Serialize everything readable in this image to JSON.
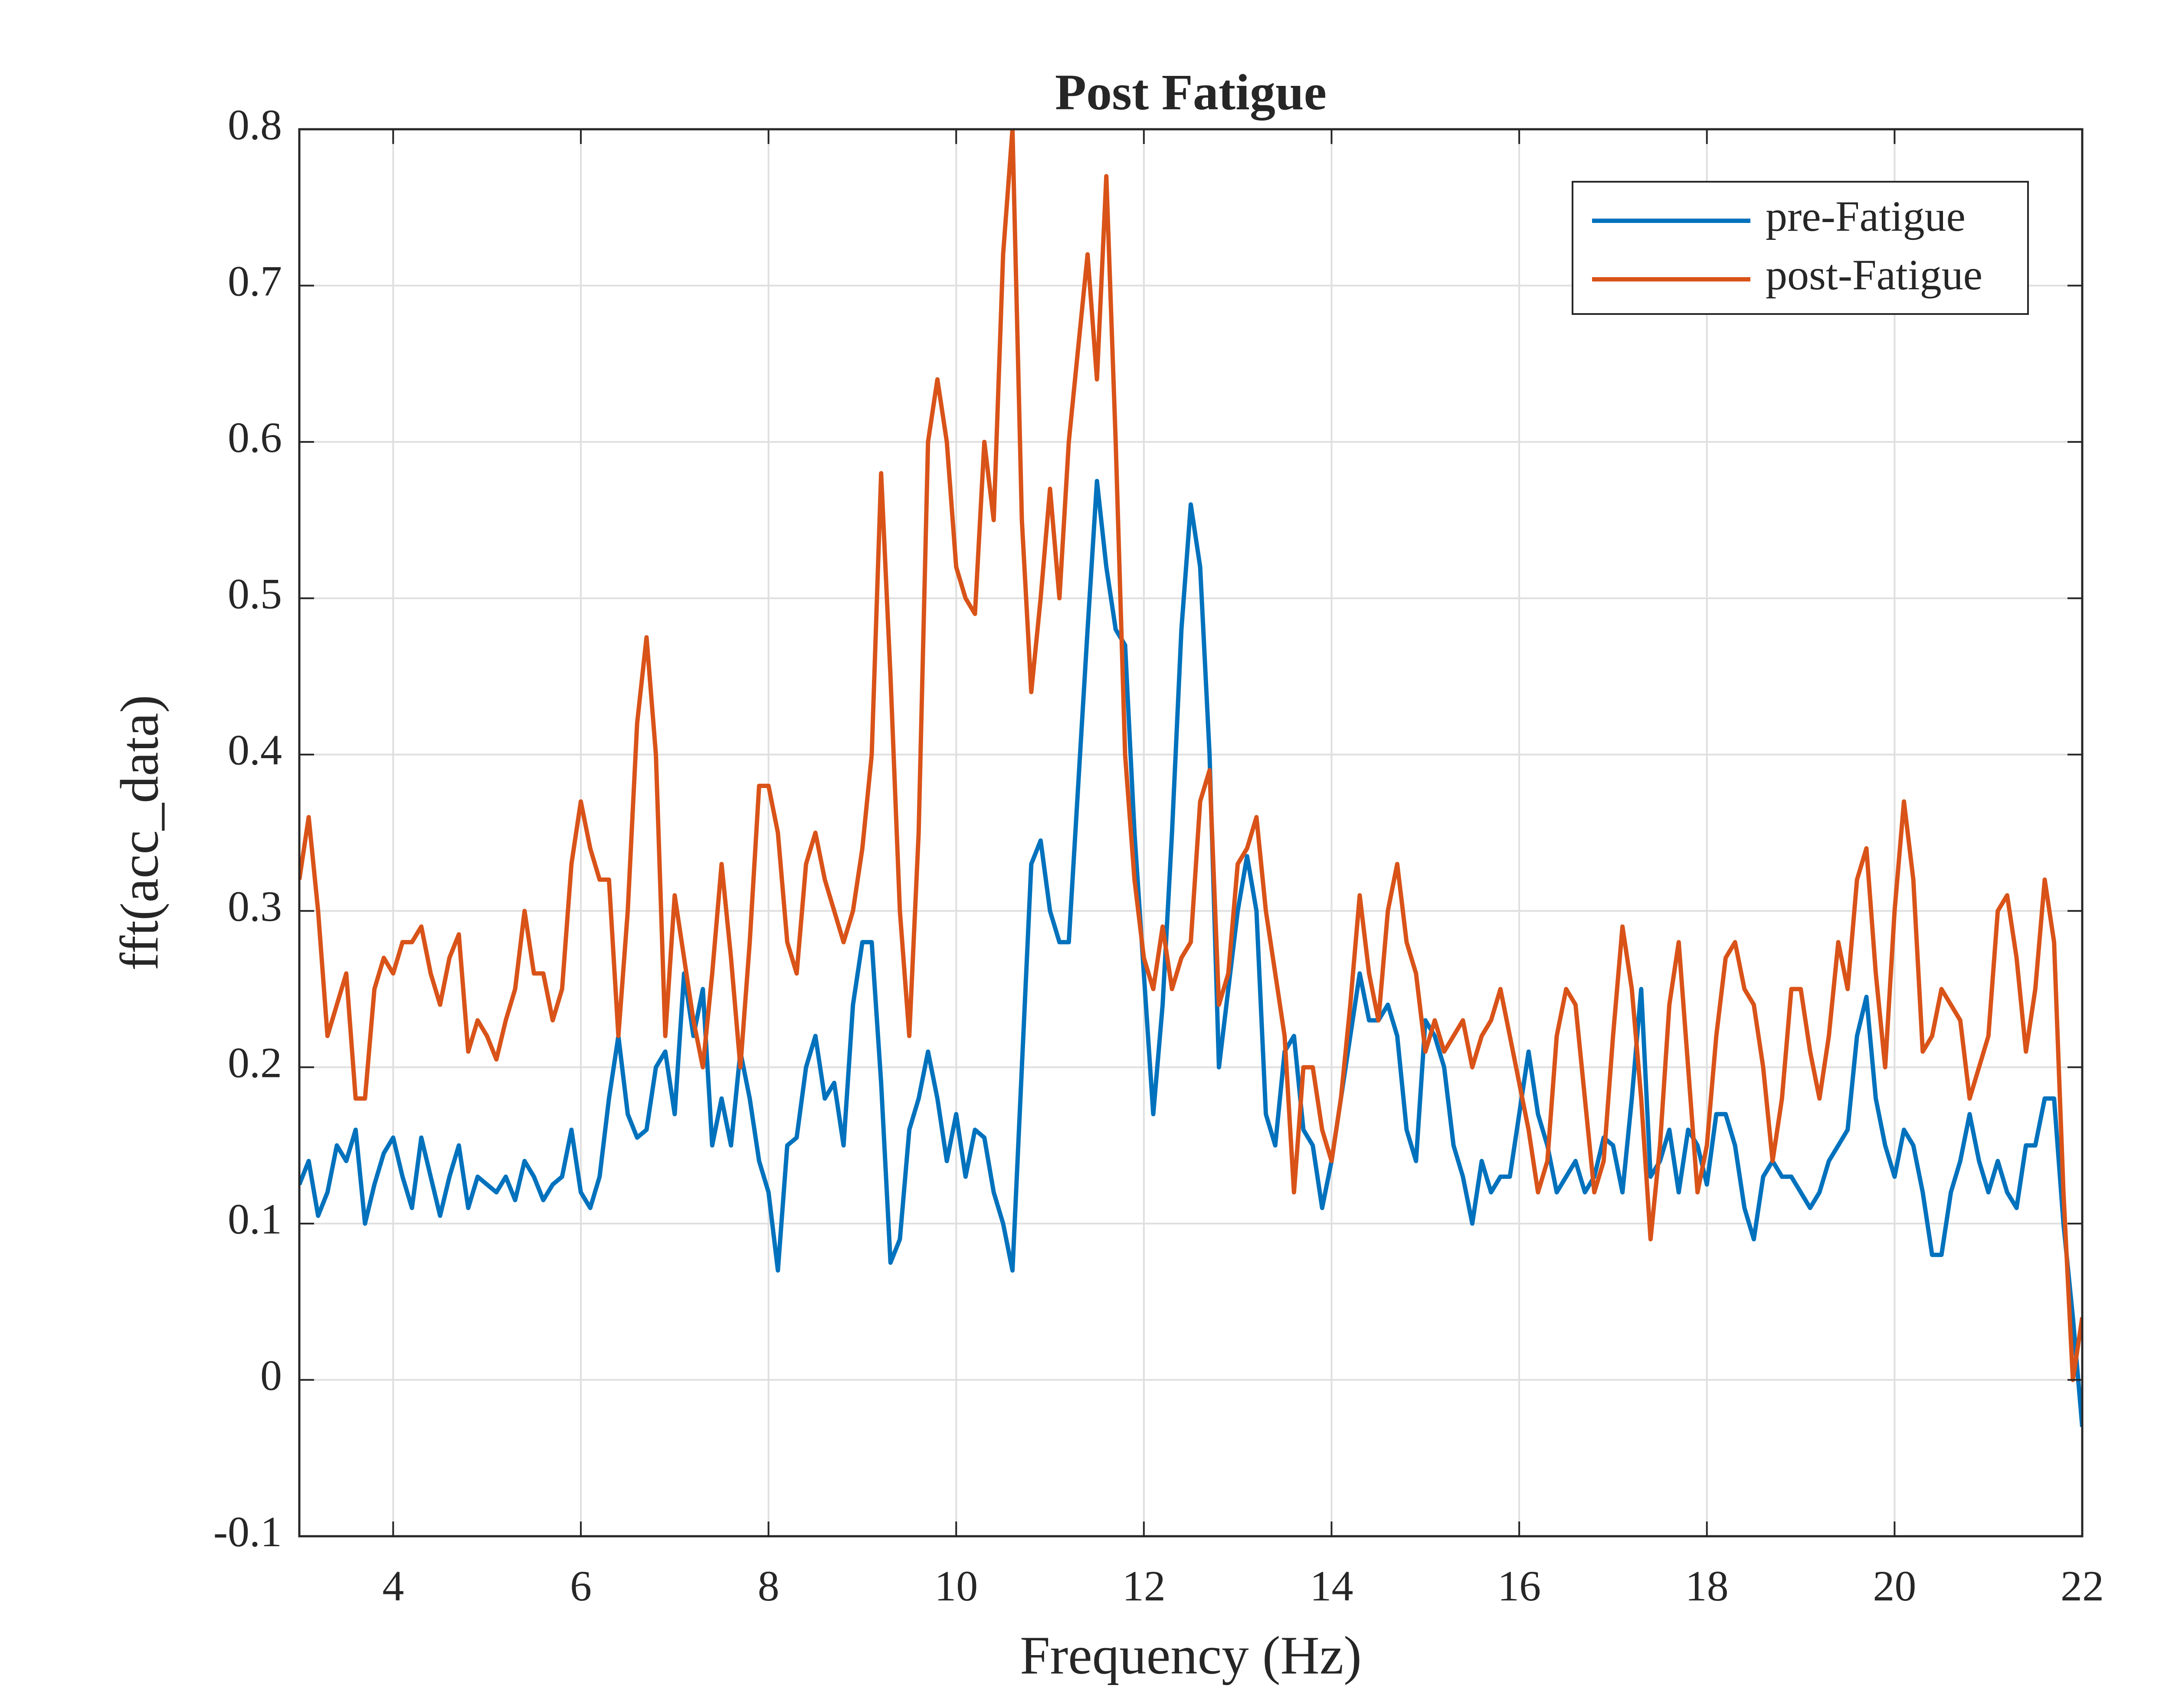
{
  "chart_data": {
    "type": "line",
    "title": "Post Fatigue",
    "xlabel": "Frequency (Hz)",
    "ylabel": "fft(acc_data)",
    "x": [
      3,
      3.1,
      3.2,
      3.3,
      3.4,
      3.5,
      3.6,
      3.7,
      3.8,
      3.9,
      4,
      4.1,
      4.2,
      4.3,
      4.4,
      4.5,
      4.6,
      4.7,
      4.8,
      4.9,
      5,
      5.1,
      5.2,
      5.3,
      5.4,
      5.5,
      5.6,
      5.7,
      5.8,
      5.9,
      6,
      6.1,
      6.2,
      6.3,
      6.4,
      6.5,
      6.6,
      6.7,
      6.8,
      6.9,
      7,
      7.1,
      7.2,
      7.3,
      7.4,
      7.5,
      7.6,
      7.7,
      7.8,
      7.9,
      8,
      8.1,
      8.2,
      8.3,
      8.4,
      8.5,
      8.6,
      8.7,
      8.8,
      8.9,
      9,
      9.1,
      9.2,
      9.3,
      9.4,
      9.5,
      9.6,
      9.7,
      9.8,
      9.9,
      10,
      10.1,
      10.2,
      10.3,
      10.4,
      10.5,
      10.6,
      10.7,
      10.8,
      10.9,
      11,
      11.1,
      11.2,
      11.3,
      11.4,
      11.5,
      11.6,
      11.7,
      11.8,
      11.9,
      12,
      12.1,
      12.2,
      12.3,
      12.4,
      12.5,
      12.6,
      12.7,
      12.8,
      12.9,
      13,
      13.1,
      13.2,
      13.3,
      13.4,
      13.5,
      13.6,
      13.7,
      13.8,
      13.9,
      14,
      14.1,
      14.2,
      14.3,
      14.4,
      14.5,
      14.6,
      14.7,
      14.8,
      14.9,
      15,
      15.1,
      15.2,
      15.3,
      15.4,
      15.5,
      15.6,
      15.7,
      15.8,
      15.9,
      16,
      16.1,
      16.2,
      16.3,
      16.4,
      16.5,
      16.6,
      16.7,
      16.8,
      16.9,
      17,
      17.1,
      17.2,
      17.3,
      17.4,
      17.5,
      17.6,
      17.7,
      17.8,
      17.9,
      18,
      18.1,
      18.2,
      18.3,
      18.4,
      18.5,
      18.6,
      18.7,
      18.8,
      18.9,
      19,
      19.1,
      19.2,
      19.3,
      19.4,
      19.5,
      19.6,
      19.7,
      19.8,
      19.9,
      20,
      20.1,
      20.2,
      20.3,
      20.4,
      20.5,
      20.6,
      20.7,
      20.8,
      20.9,
      21,
      21.1,
      21.2,
      21.3,
      21.4,
      21.5,
      21.6,
      21.7,
      21.8,
      21.9,
      22
    ],
    "series": [
      {
        "name": "pre-Fatigue",
        "color": "#0072bd",
        "values": [
          0.125,
          0.14,
          0.105,
          0.12,
          0.15,
          0.14,
          0.16,
          0.1,
          0.125,
          0.145,
          0.155,
          0.13,
          0.11,
          0.155,
          0.13,
          0.105,
          0.13,
          0.15,
          0.11,
          0.13,
          0.125,
          0.12,
          0.13,
          0.115,
          0.14,
          0.13,
          0.115,
          0.125,
          0.13,
          0.16,
          0.12,
          0.11,
          0.13,
          0.18,
          0.22,
          0.17,
          0.155,
          0.16,
          0.2,
          0.21,
          0.17,
          0.26,
          0.22,
          0.25,
          0.15,
          0.18,
          0.15,
          0.21,
          0.18,
          0.14,
          0.12,
          0.07,
          0.15,
          0.155,
          0.2,
          0.22,
          0.18,
          0.19,
          0.15,
          0.24,
          0.28,
          0.28,
          0.19,
          0.075,
          0.09,
          0.16,
          0.18,
          0.21,
          0.18,
          0.14,
          0.17,
          0.13,
          0.16,
          0.155,
          0.12,
          0.1,
          0.07,
          0.2,
          0.33,
          0.345,
          0.3,
          0.28,
          0.28,
          0.38,
          0.48,
          0.575,
          0.52,
          0.48,
          0.47,
          0.35,
          0.26,
          0.17,
          0.24,
          0.35,
          0.48,
          0.56,
          0.52,
          0.4,
          0.2,
          0.25,
          0.3,
          0.335,
          0.3,
          0.17,
          0.15,
          0.21,
          0.22,
          0.16,
          0.15,
          0.11,
          0.14,
          0.18,
          0.22,
          0.26,
          0.23,
          0.23,
          0.24,
          0.22,
          0.16,
          0.14,
          0.23,
          0.22,
          0.2,
          0.15,
          0.13,
          0.1,
          0.14,
          0.12,
          0.13,
          0.13,
          0.17,
          0.21,
          0.17,
          0.15,
          0.12,
          0.13,
          0.14,
          0.12,
          0.13,
          0.155,
          0.15,
          0.12,
          0.18,
          0.25,
          0.13,
          0.14,
          0.16,
          0.12,
          0.16,
          0.15,
          0.125,
          0.17,
          0.17,
          0.15,
          0.11,
          0.09,
          0.13,
          0.14,
          0.13,
          0.13,
          0.12,
          0.11,
          0.12,
          0.14,
          0.15,
          0.16,
          0.22,
          0.245,
          0.18,
          0.15,
          0.13,
          0.16,
          0.15,
          0.12,
          0.08,
          0.08,
          0.12,
          0.14,
          0.17,
          0.14,
          0.12,
          0.14,
          0.12,
          0.11,
          0.15,
          0.15,
          0.18,
          0.18,
          0.1,
          0.04,
          -0.03
        ]
      },
      {
        "name": "post-Fatigue",
        "color": "#d95319",
        "values": [
          0.32,
          0.36,
          0.3,
          0.22,
          0.24,
          0.26,
          0.18,
          0.18,
          0.25,
          0.27,
          0.26,
          0.28,
          0.28,
          0.29,
          0.26,
          0.24,
          0.27,
          0.285,
          0.21,
          0.23,
          0.22,
          0.205,
          0.23,
          0.25,
          0.3,
          0.26,
          0.26,
          0.23,
          0.25,
          0.33,
          0.37,
          0.34,
          0.32,
          0.32,
          0.22,
          0.3,
          0.42,
          0.475,
          0.4,
          0.22,
          0.31,
          0.27,
          0.23,
          0.2,
          0.26,
          0.33,
          0.27,
          0.2,
          0.28,
          0.38,
          0.38,
          0.35,
          0.28,
          0.26,
          0.33,
          0.35,
          0.32,
          0.3,
          0.28,
          0.3,
          0.34,
          0.4,
          0.58,
          0.45,
          0.3,
          0.22,
          0.35,
          0.6,
          0.64,
          0.6,
          0.52,
          0.5,
          0.49,
          0.6,
          0.55,
          0.72,
          0.8,
          0.55,
          0.44,
          0.5,
          0.57,
          0.5,
          0.6,
          0.66,
          0.72,
          0.64,
          0.77,
          0.6,
          0.4,
          0.32,
          0.27,
          0.25,
          0.29,
          0.25,
          0.27,
          0.28,
          0.37,
          0.39,
          0.24,
          0.26,
          0.33,
          0.34,
          0.36,
          0.3,
          0.26,
          0.22,
          0.12,
          0.2,
          0.2,
          0.16,
          0.14,
          0.18,
          0.24,
          0.31,
          0.26,
          0.23,
          0.3,
          0.33,
          0.28,
          0.26,
          0.21,
          0.23,
          0.21,
          0.22,
          0.23,
          0.2,
          0.22,
          0.23,
          0.25,
          0.22,
          0.19,
          0.16,
          0.12,
          0.14,
          0.22,
          0.25,
          0.24,
          0.18,
          0.12,
          0.14,
          0.22,
          0.29,
          0.25,
          0.18,
          0.09,
          0.15,
          0.24,
          0.28,
          0.2,
          0.12,
          0.15,
          0.22,
          0.27,
          0.28,
          0.25,
          0.24,
          0.2,
          0.14,
          0.18,
          0.25,
          0.25,
          0.21,
          0.18,
          0.22,
          0.28,
          0.25,
          0.32,
          0.34,
          0.26,
          0.2,
          0.3,
          0.37,
          0.32,
          0.21,
          0.22,
          0.25,
          0.24,
          0.23,
          0.18,
          0.2,
          0.22,
          0.3,
          0.31,
          0.27,
          0.21,
          0.25,
          0.32,
          0.28,
          0.12,
          0,
          0.04
        ]
      }
    ],
    "xlim": [
      3,
      22
    ],
    "xticks": [
      4,
      6,
      8,
      10,
      12,
      14,
      16,
      18,
      20,
      22
    ],
    "ylim": [
      -0.1,
      0.8
    ],
    "yticks": [
      -0.1,
      0,
      0.1,
      0.2,
      0.3,
      0.4,
      0.5,
      0.6,
      0.7,
      0.8
    ],
    "grid": true,
    "legend": "northeast"
  }
}
